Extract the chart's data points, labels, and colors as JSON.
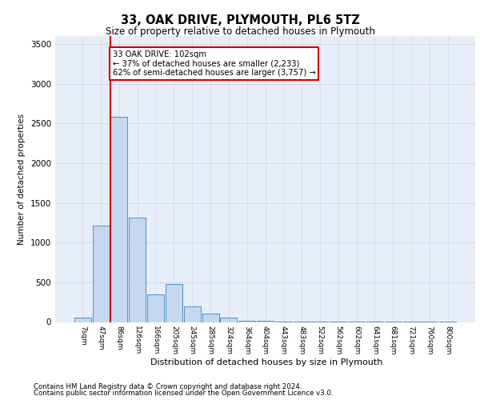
{
  "title": "33, OAK DRIVE, PLYMOUTH, PL6 5TZ",
  "subtitle": "Size of property relative to detached houses in Plymouth",
  "xlabel": "Distribution of detached houses by size in Plymouth",
  "ylabel": "Number of detached properties",
  "bar_labels": [
    "7sqm",
    "47sqm",
    "86sqm",
    "126sqm",
    "166sqm",
    "205sqm",
    "245sqm",
    "285sqm",
    "324sqm",
    "364sqm",
    "404sqm",
    "443sqm",
    "483sqm",
    "522sqm",
    "562sqm",
    "602sqm",
    "641sqm",
    "681sqm",
    "721sqm",
    "760sqm",
    "800sqm"
  ],
  "bar_values": [
    55,
    1210,
    2580,
    1310,
    350,
    480,
    195,
    110,
    55,
    20,
    15,
    8,
    4,
    2,
    1,
    1,
    0.5,
    0.5,
    0.3,
    0.2,
    0.1
  ],
  "bar_color": "#c5d8f0",
  "bar_edge_color": "#4a90c4",
  "grid_color": "#d0d8e8",
  "red_line_bar_index": 2,
  "annotation_text": "33 OAK DRIVE: 102sqm\n← 37% of detached houses are smaller (2,233)\n62% of semi-detached houses are larger (3,757) →",
  "annotation_box_color": "#cc0000",
  "ylim": [
    0,
    3600
  ],
  "yticks": [
    0,
    500,
    1000,
    1500,
    2000,
    2500,
    3000,
    3500
  ],
  "footnote1": "Contains HM Land Registry data © Crown copyright and database right 2024.",
  "footnote2": "Contains public sector information licensed under the Open Government Licence v3.0.",
  "bg_color": "#e8eef8"
}
